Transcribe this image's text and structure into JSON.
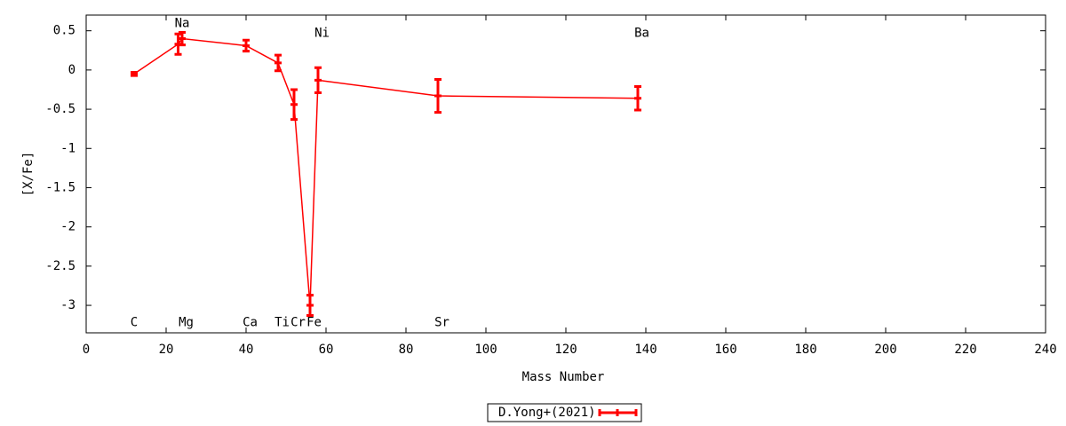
{
  "chart_data": {
    "type": "errorbar-line",
    "x_label": "Mass Number",
    "y_label": "[X/Fe]",
    "xlim": [
      0,
      240
    ],
    "xticks": [
      0,
      20,
      40,
      60,
      80,
      100,
      120,
      140,
      160,
      180,
      200,
      220,
      240
    ],
    "ylim": [
      -3.35,
      0.7
    ],
    "yticks": [
      0.5,
      0,
      -0.5,
      -1,
      -1.5,
      -2,
      -2.5,
      -3
    ],
    "series": [
      {
        "name": "D.Yong+(2021)",
        "color": "#ff0000",
        "x": [
          12,
          23,
          24,
          40,
          48,
          52,
          56,
          58,
          88,
          138
        ],
        "values": [
          -0.05,
          0.33,
          0.4,
          0.31,
          0.09,
          -0.44,
          -3.0,
          -0.13,
          -0.33,
          -0.36
        ],
        "errors": [
          0.02,
          0.13,
          0.08,
          0.07,
          0.1,
          0.19,
          0.13,
          0.16,
          0.21,
          0.15
        ]
      }
    ],
    "annotations": [
      {
        "text": "C",
        "x": 12,
        "y": -3.22
      },
      {
        "text": "Na",
        "x": 24,
        "y": 0.59
      },
      {
        "text": "Mg",
        "x": 25,
        "y": -3.22
      },
      {
        "text": "Ca",
        "x": 41,
        "y": -3.22
      },
      {
        "text": "Ti",
        "x": 49,
        "y": -3.22
      },
      {
        "text": "Cr",
        "x": 53,
        "y": -3.22
      },
      {
        "text": "Fe",
        "x": 57,
        "y": -3.22
      },
      {
        "text": "Ni",
        "x": 59,
        "y": 0.47
      },
      {
        "text": "Sr",
        "x": 89,
        "y": -3.22
      },
      {
        "text": "Ba",
        "x": 139,
        "y": 0.47
      }
    ],
    "legend": "bottom"
  }
}
